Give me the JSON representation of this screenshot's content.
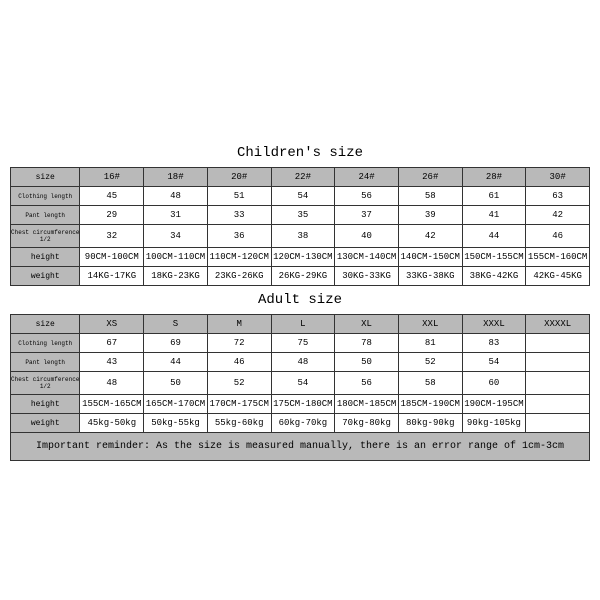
{
  "children": {
    "title": "Children's size",
    "rows": [
      {
        "label": "size",
        "label_class": "row-label",
        "cells": [
          "16#",
          "18#",
          "20#",
          "22#",
          "24#",
          "26#",
          "28#",
          "30#"
        ],
        "hdr": true
      },
      {
        "label": "Clothing length",
        "label_class": "small-lbl",
        "cells": [
          "45",
          "48",
          "51",
          "54",
          "56",
          "58",
          "61",
          "63"
        ]
      },
      {
        "label": "Pant length",
        "label_class": "small-lbl",
        "cells": [
          "29",
          "31",
          "33",
          "35",
          "37",
          "39",
          "41",
          "42"
        ]
      },
      {
        "label": "Chest circumference 1/2",
        "label_class": "small-lbl",
        "cells": [
          "32",
          "34",
          "36",
          "38",
          "40",
          "42",
          "44",
          "46"
        ]
      },
      {
        "label": "height",
        "label_class": "row-label",
        "cells": [
          "90CM-100CM",
          "100CM-110CM",
          "110CM-120CM",
          "120CM-130CM",
          "130CM-140CM",
          "140CM-150CM",
          "150CM-155CM",
          "155CM-160CM"
        ]
      },
      {
        "label": "weight",
        "label_class": "row-label",
        "cells": [
          "14KG-17KG",
          "18KG-23KG",
          "23KG-26KG",
          "26KG-29KG",
          "30KG-33KG",
          "33KG-38KG",
          "38KG-42KG",
          "42KG-45KG"
        ]
      }
    ]
  },
  "adult": {
    "title": "Adult size",
    "rows": [
      {
        "label": "size",
        "label_class": "row-label",
        "cells": [
          "XS",
          "S",
          "M",
          "L",
          "XL",
          "XXL",
          "XXXL",
          "XXXXL"
        ],
        "hdr": true
      },
      {
        "label": "Clothing length",
        "label_class": "small-lbl",
        "cells": [
          "67",
          "69",
          "72",
          "75",
          "78",
          "81",
          "83",
          ""
        ]
      },
      {
        "label": "Pant length",
        "label_class": "small-lbl",
        "cells": [
          "43",
          "44",
          "46",
          "48",
          "50",
          "52",
          "54",
          ""
        ]
      },
      {
        "label": "Chest circumference 1/2",
        "label_class": "small-lbl",
        "cells": [
          "48",
          "50",
          "52",
          "54",
          "56",
          "58",
          "60",
          ""
        ]
      },
      {
        "label": "height",
        "label_class": "row-label",
        "cells": [
          "155CM-165CM",
          "165CM-170CM",
          "170CM-175CM",
          "175CM-180CM",
          "180CM-185CM",
          "185CM-190CM",
          "190CM-195CM",
          ""
        ]
      },
      {
        "label": "weight",
        "label_class": "row-label",
        "cells": [
          "45kg-50kg",
          "50kg-55kg",
          "55kg-60kg",
          "60kg-70kg",
          "70kg-80kg",
          "80kg-90kg",
          "90kg-105kg",
          ""
        ]
      }
    ]
  },
  "note": "Important reminder: As the size is measured manually, there is an error range of 1cm-3cm",
  "style": {
    "header_bg": "#b9b9b9",
    "border_color": "#333333",
    "bg": "#ffffff",
    "font_family": "Courier New"
  }
}
